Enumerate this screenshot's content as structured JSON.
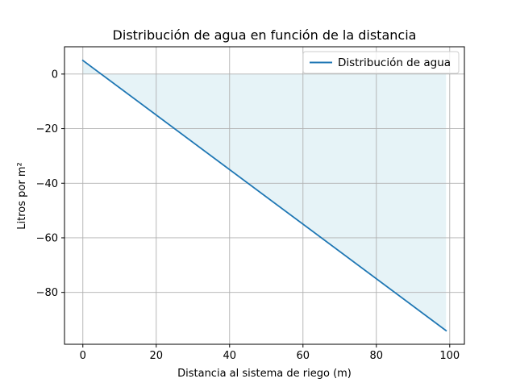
{
  "chart_data": {
    "type": "line",
    "title": "Distribución de agua en función de la distancia",
    "xlabel": "Distancia al sistema de riego (m)",
    "ylabel": "Litros por m²",
    "xlim": [
      -5,
      104
    ],
    "ylim": [
      -99,
      10
    ],
    "x_ticks": [
      0,
      20,
      40,
      60,
      80,
      100
    ],
    "y_ticks": [
      0,
      -20,
      -40,
      -60,
      -80
    ],
    "grid": true,
    "legend_position": "upper right",
    "series": [
      {
        "name": "Distribución de agua",
        "color": "#1f77b4",
        "x": [
          0,
          99
        ],
        "y": [
          5,
          -94
        ]
      }
    ],
    "fill": {
      "between_y": 0,
      "color": "#add8e6",
      "opacity": 0.3
    }
  }
}
